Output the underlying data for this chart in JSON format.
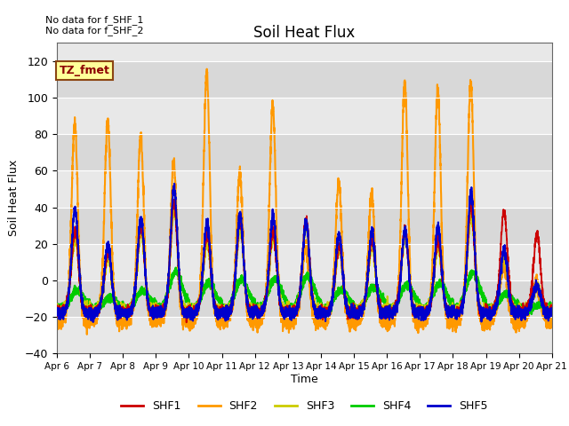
{
  "title": "Soil Heat Flux",
  "ylabel": "Soil Heat Flux",
  "xlabel": "Time",
  "ylim": [
    -40,
    130
  ],
  "yticks": [
    -40,
    -20,
    0,
    20,
    40,
    60,
    80,
    100,
    120
  ],
  "note1": "No data for f_SHF_1",
  "note2": "No data for f_SHF_2",
  "tz_label": "TZ_fmet",
  "colors": {
    "SHF1": "#cc0000",
    "SHF2": "#ff9900",
    "SHF3": "#cccc00",
    "SHF4": "#00cc00",
    "SHF5": "#0000cc"
  },
  "plot_bg_light": "#dcdcdc",
  "plot_bg_dark": "#c8c8c8",
  "x_tick_labels": [
    "Apr 6",
    "Apr 7",
    "Apr 8",
    "Apr 9",
    "Apr 10",
    "Apr 11",
    "Apr 12",
    "Apr 13",
    "Apr 14",
    "Apr 15",
    "Apr 16",
    "Apr 17",
    "Apr 18",
    "Apr 19",
    "Apr 20",
    "Apr 21"
  ],
  "shf2_peaks": [
    97,
    99,
    91,
    75,
    125,
    70,
    107,
    30,
    65,
    59,
    120,
    115,
    120,
    20,
    10
  ],
  "shf5_peaks": [
    52,
    33,
    47,
    64,
    45,
    49,
    49,
    45,
    38,
    40,
    40,
    42,
    61,
    30,
    10
  ],
  "shf1_peaks": [
    40,
    28,
    42,
    55,
    38,
    45,
    40,
    46,
    32,
    35,
    40,
    35,
    53,
    51,
    38
  ],
  "shf3_peaks": [
    35,
    24,
    38,
    50,
    32,
    40,
    35,
    42,
    28,
    30,
    35,
    30,
    48,
    25,
    8
  ],
  "shf4_peaks": [
    12,
    8,
    12,
    22,
    16,
    18,
    18,
    20,
    12,
    14,
    15,
    16,
    22,
    10,
    4
  ]
}
